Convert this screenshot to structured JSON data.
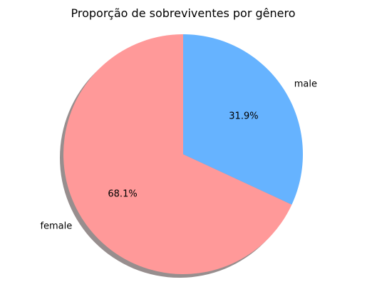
{
  "chart_data": {
    "type": "pie",
    "title": "Proporção de sobreviventes por gênero",
    "shadow": true,
    "start_angle_deg": 90,
    "direction": "counterclockwise",
    "slices": [
      {
        "label": "female",
        "value": 68.1,
        "pct_label": "68.1%",
        "color": "#ff9999"
      },
      {
        "label": "male",
        "value": 31.9,
        "pct_label": "31.9%",
        "color": "#66b3ff"
      }
    ]
  }
}
